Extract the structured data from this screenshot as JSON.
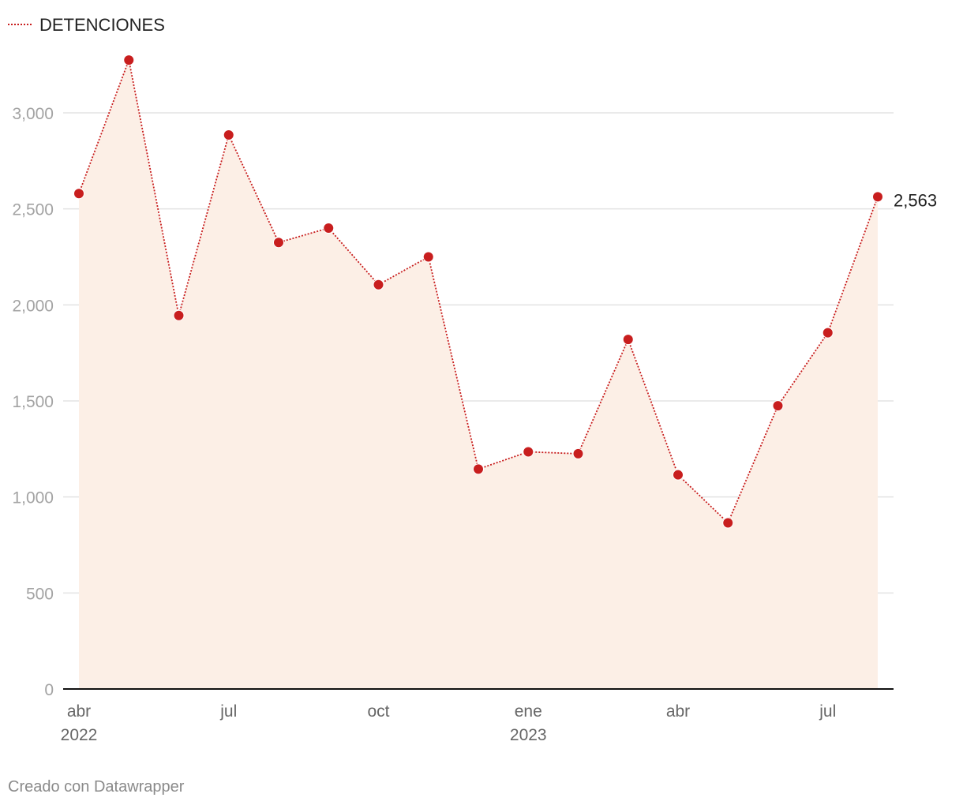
{
  "legend": {
    "label": "DETENCIONES"
  },
  "credit": "Creado con Datawrapper",
  "end_label": "2,563",
  "colors": {
    "line": "#c81e1e",
    "dot": "#c81e1e",
    "area": "#fcefe6",
    "grid": "#e3e3e3",
    "axis": "#111111"
  },
  "chart_data": {
    "type": "line",
    "title": "",
    "series": [
      {
        "name": "DETENCIONES",
        "x": [
          "2022-04",
          "2022-05",
          "2022-06",
          "2022-07",
          "2022-08",
          "2022-09",
          "2022-10",
          "2022-11",
          "2022-12",
          "2023-01",
          "2023-02",
          "2023-03",
          "2023-04",
          "2023-05",
          "2023-06",
          "2023-07",
          "2023-08"
        ],
        "values": [
          2580,
          3275,
          1945,
          2885,
          2325,
          2400,
          2105,
          2250,
          1145,
          1235,
          1225,
          1820,
          1115,
          865,
          1475,
          1855,
          2563
        ]
      }
    ],
    "ylim": [
      0,
      3300
    ],
    "yticks": [
      0,
      500,
      1000,
      1500,
      2000,
      2500,
      3000
    ],
    "ytick_labels": [
      "0",
      "500",
      "1,000",
      "1,500",
      "2,000",
      "2,500",
      "3,000"
    ],
    "xticks": [
      {
        "index": 0,
        "label": "abr",
        "sublabel": "2022"
      },
      {
        "index": 3,
        "label": "jul",
        "sublabel": ""
      },
      {
        "index": 6,
        "label": "oct",
        "sublabel": ""
      },
      {
        "index": 9,
        "label": "ene",
        "sublabel": "2023"
      },
      {
        "index": 12,
        "label": "abr",
        "sublabel": ""
      },
      {
        "index": 15,
        "label": "jul",
        "sublabel": ""
      }
    ],
    "xlabel": "",
    "ylabel": "",
    "grid": true
  }
}
